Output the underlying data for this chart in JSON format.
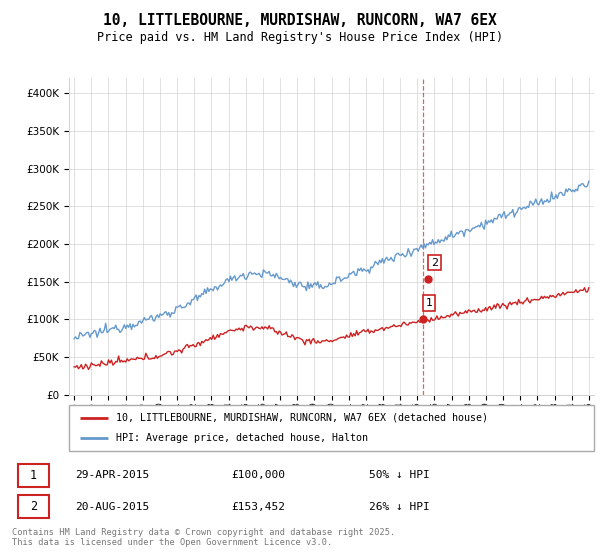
{
  "title": "10, LITTLEBOURNE, MURDISHAW, RUNCORN, WA7 6EX",
  "subtitle": "Price paid vs. HM Land Registry's House Price Index (HPI)",
  "legend_line1": "10, LITTLEBOURNE, MURDISHAW, RUNCORN, WA7 6EX (detached house)",
  "legend_line2": "HPI: Average price, detached house, Halton",
  "transaction1_date": "29-APR-2015",
  "transaction1_price": "£100,000",
  "transaction1_hpi": "50% ↓ HPI",
  "transaction2_date": "20-AUG-2015",
  "transaction2_price": "£153,452",
  "transaction2_hpi": "26% ↓ HPI",
  "footer": "Contains HM Land Registry data © Crown copyright and database right 2025.\nThis data is licensed under the Open Government Licence v3.0.",
  "hpi_color": "#6699cc",
  "property_color": "#cc2222",
  "ylim_min": 0,
  "ylim_max": 420000,
  "year_start": 1995,
  "year_end": 2025,
  "sale1_year": 2015.33,
  "sale1_price": 100000,
  "sale2_year": 2015.65,
  "sale2_price": 153452
}
